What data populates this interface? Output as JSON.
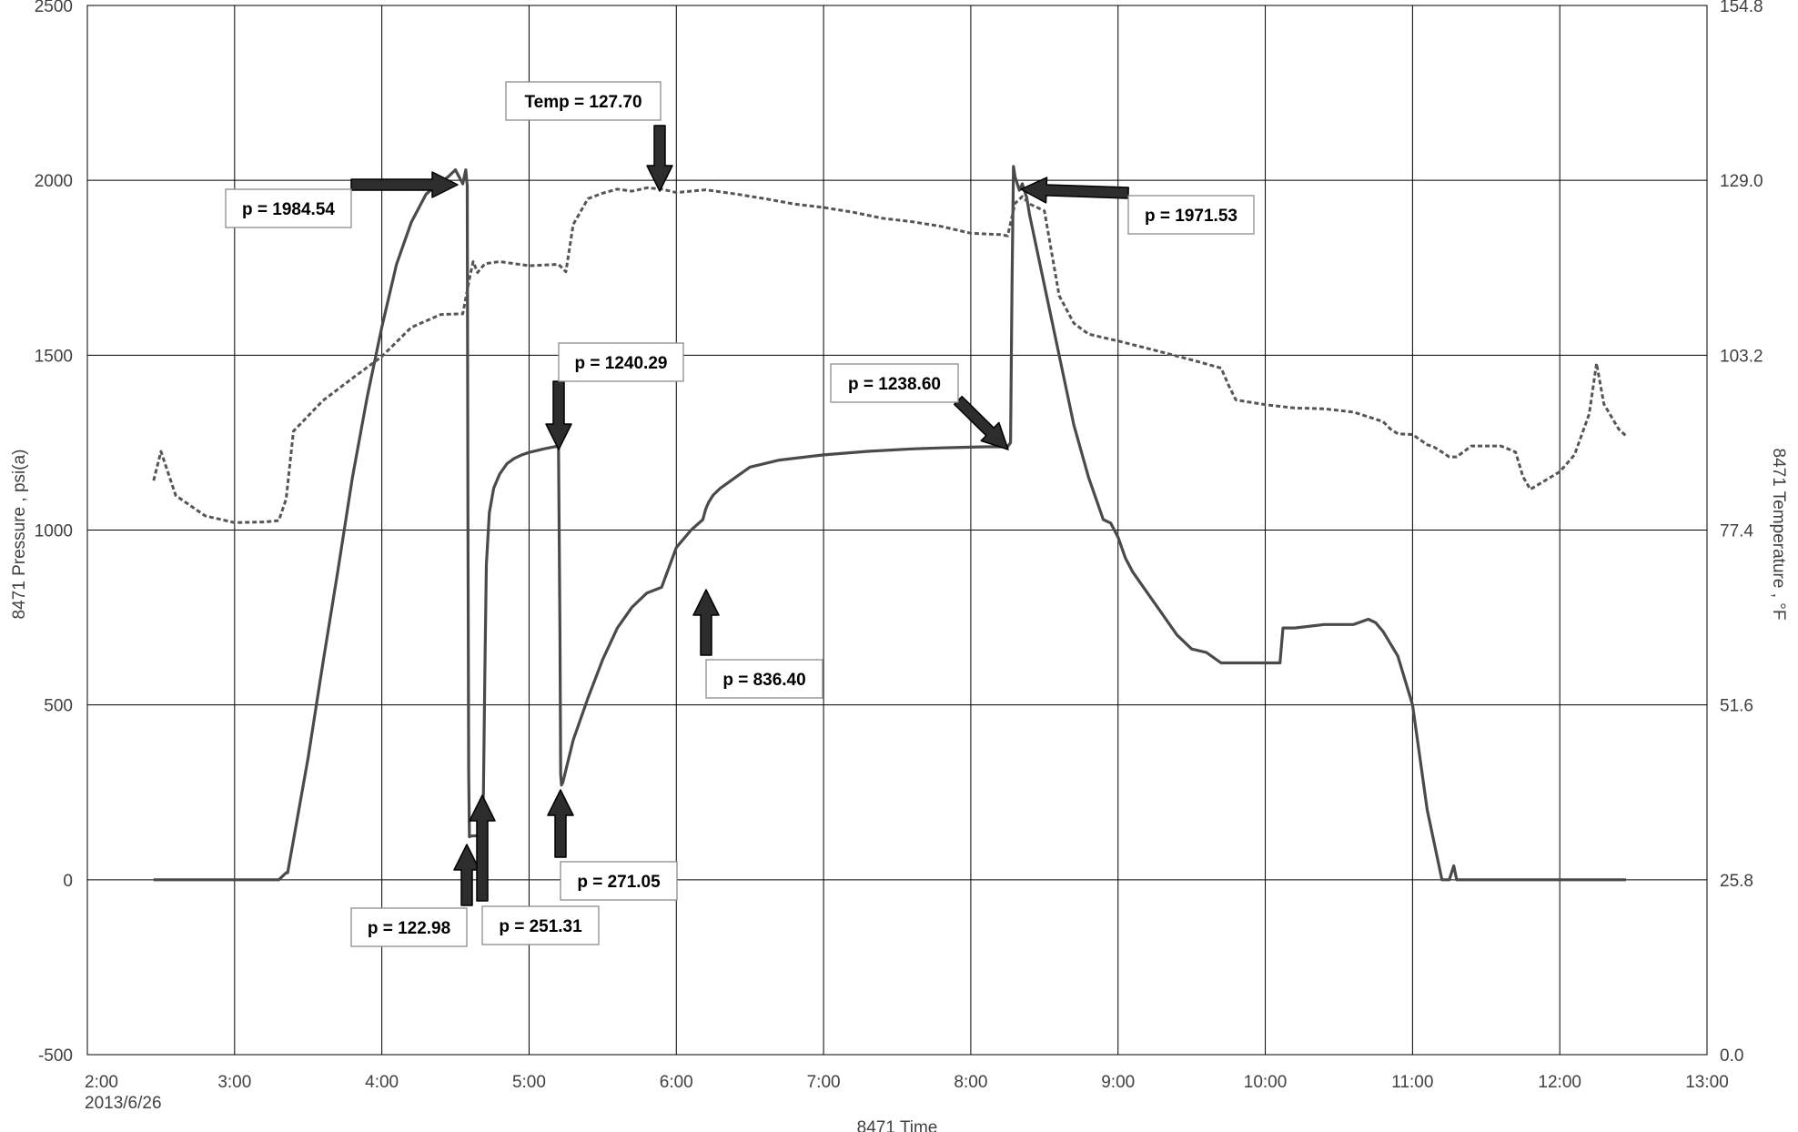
{
  "chart_data": {
    "type": "line",
    "xlabel": "8471 Time",
    "ylabel_left": "8471 Pressure , psi(a)",
    "ylabel_right": "8471 Temperature , °F",
    "x_ticks": [
      "2:00",
      "3:00",
      "4:00",
      "5:00",
      "6:00",
      "7:00",
      "8:00",
      "9:00",
      "10:00",
      "11:00",
      "12:00",
      "13:00"
    ],
    "x_first_tick_date": "2013/6/26",
    "x_range_hours": [
      2.0,
      13.0
    ],
    "y_left_ticks": [
      "-500",
      "0",
      "500",
      "1000",
      "1500",
      "2000",
      "2500"
    ],
    "y_left_range": [
      -500,
      2500
    ],
    "y_right_ticks": [
      "0.0",
      "25.8",
      "51.6",
      "77.4",
      "103.2",
      "129.0",
      "154.8"
    ],
    "y_right_range": [
      0.0,
      154.8
    ],
    "grid": true,
    "series": [
      {
        "axis": "left",
        "style": "solid",
        "x_hours": [
          2.45,
          3.3,
          3.35,
          3.36,
          3.5,
          3.6,
          3.7,
          3.8,
          3.9,
          4.0,
          4.1,
          4.2,
          4.3,
          4.38,
          4.45,
          4.5,
          4.55,
          4.57,
          4.58,
          4.585,
          4.59,
          4.595,
          4.6,
          4.65,
          4.68,
          4.69,
          4.7,
          4.71,
          4.73,
          4.76,
          4.8,
          4.85,
          4.9,
          4.95,
          5.0,
          5.1,
          5.2,
          5.21,
          5.215,
          5.22,
          5.23,
          5.3,
          5.4,
          5.5,
          5.6,
          5.7,
          5.8,
          5.9,
          6.0,
          6.1,
          6.18,
          6.2,
          6.22,
          6.25,
          6.3,
          6.4,
          6.5,
          6.7,
          7.0,
          7.3,
          7.6,
          7.8,
          8.0,
          8.1,
          8.2,
          8.25,
          8.27,
          8.28,
          8.29,
          8.3,
          8.33,
          8.35,
          8.38,
          8.4,
          8.45,
          8.5,
          8.6,
          8.7,
          8.8,
          8.9,
          8.95,
          9.0,
          9.05,
          9.1,
          9.2,
          9.3,
          9.4,
          9.5,
          9.6,
          9.7,
          9.8,
          9.9,
          10.0,
          10.1,
          10.12,
          10.2,
          10.4,
          10.5,
          10.6,
          10.7,
          10.75,
          10.8,
          10.9,
          11.0,
          11.1,
          11.2,
          11.25,
          11.28,
          11.3,
          11.5,
          12.0,
          12.45
        ],
        "values": [
          0,
          0,
          20,
          20,
          350,
          620,
          880,
          1150,
          1380,
          1580,
          1760,
          1880,
          1960,
          1990,
          2010,
          2030,
          1990,
          2030,
          1984.54,
          1000,
          300,
          122.98,
          125,
          126,
          130,
          251.31,
          600,
          900,
          1050,
          1120,
          1160,
          1190,
          1205,
          1215,
          1222,
          1232,
          1240.29,
          700,
          300,
          271.05,
          280,
          400,
          520,
          630,
          720,
          780,
          820,
          836.4,
          950,
          1000,
          1030,
          1060,
          1080,
          1100,
          1120,
          1150,
          1180,
          1200,
          1215,
          1225,
          1232,
          1235,
          1237,
          1238,
          1238,
          1238.6,
          1250,
          1700,
          2040,
          2010,
          1971.53,
          1990,
          1950,
          1900,
          1800,
          1700,
          1500,
          1300,
          1150,
          1030,
          1020,
          980,
          920,
          880,
          820,
          760,
          700,
          660,
          650,
          620,
          620,
          620,
          620,
          620,
          720,
          720,
          730,
          730,
          730,
          745,
          735,
          710,
          640,
          500,
          200,
          0,
          0,
          40,
          0,
          0,
          0,
          0
        ]
      },
      {
        "axis": "right",
        "style": "dashed",
        "x_hours": [
          2.45,
          2.5,
          2.6,
          2.8,
          3.0,
          3.2,
          3.3,
          3.35,
          3.4,
          3.6,
          3.8,
          4.0,
          4.2,
          4.4,
          4.55,
          4.6,
          4.62,
          4.65,
          4.7,
          4.8,
          5.0,
          5.2,
          5.25,
          5.3,
          5.4,
          5.5,
          5.6,
          5.7,
          5.8,
          5.9,
          6.0,
          6.2,
          6.4,
          6.6,
          6.8,
          7.0,
          7.2,
          7.4,
          7.6,
          7.8,
          8.0,
          8.2,
          8.25,
          8.3,
          8.35,
          8.4,
          8.5,
          8.6,
          8.7,
          8.8,
          9.0,
          9.2,
          9.5,
          9.7,
          9.75,
          9.8,
          10.0,
          10.2,
          10.4,
          10.6,
          10.8,
          10.85,
          10.9,
          11.0,
          11.1,
          11.15,
          11.2,
          11.25,
          11.3,
          11.4,
          11.6,
          11.7,
          11.75,
          11.8,
          12.0,
          12.1,
          12.2,
          12.25,
          12.3,
          12.4,
          12.45
        ],
        "values": [
          84.7,
          89,
          82.5,
          79.5,
          78.5,
          78.6,
          78.8,
          82,
          92,
          96.5,
          99.8,
          103,
          107.3,
          109.2,
          109.3,
          115,
          117,
          115.4,
          116.7,
          117,
          116.4,
          116.6,
          115.5,
          122.5,
          126.3,
          127.1,
          127.7,
          127.4,
          127.9,
          127.7,
          127.2,
          127.6,
          127.0,
          126.3,
          125.5,
          125.0,
          124.3,
          123.4,
          122.9,
          122.2,
          121.2,
          121.0,
          120.8,
          125.6,
          126.6,
          125.5,
          124.5,
          112,
          107.9,
          106.3,
          105.3,
          104.2,
          102.5,
          101.3,
          98.8,
          96.6,
          95.9,
          95.4,
          95.3,
          94.8,
          93.4,
          92.3,
          91.6,
          91.5,
          90,
          89.6,
          88.9,
          88.2,
          88.2,
          89.8,
          89.8,
          88.9,
          85.3,
          83.4,
          86,
          88.5,
          94.5,
          102,
          96,
          92.3,
          91.3
        ]
      }
    ]
  },
  "annotations": [
    {
      "label": "p = 1984.54"
    },
    {
      "label": "Temp = 127.70"
    },
    {
      "label": "p = 1971.53"
    },
    {
      "label": "p = 1240.29"
    },
    {
      "label": "p = 1238.60"
    },
    {
      "label": "p = 836.40"
    },
    {
      "label": "p = 271.05"
    },
    {
      "label": "p = 122.98"
    },
    {
      "label": "p = 251.31"
    }
  ]
}
